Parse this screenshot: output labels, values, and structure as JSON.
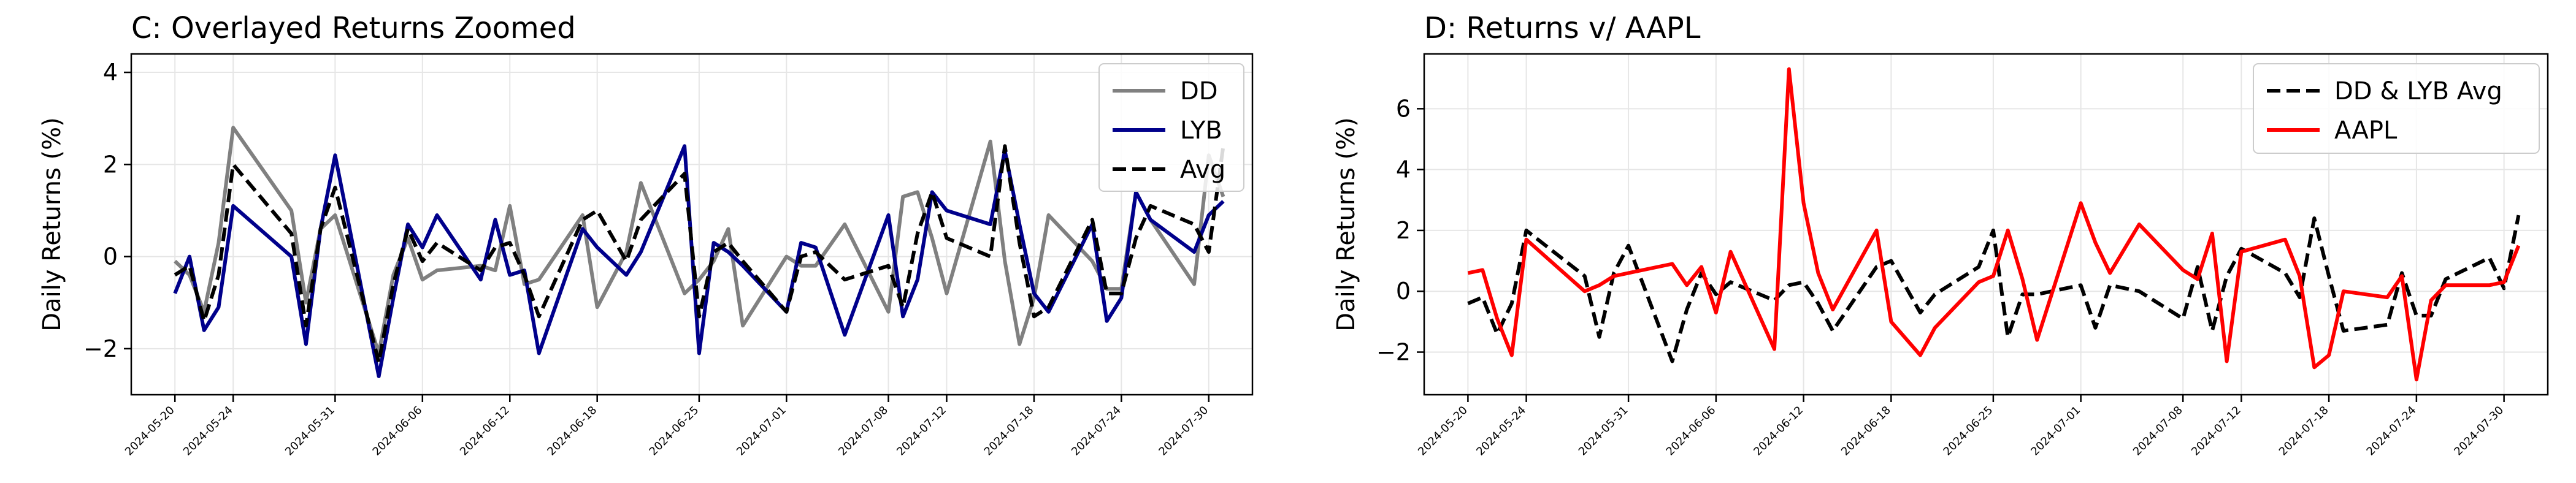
{
  "chart_data": [
    {
      "type": "line",
      "title": "C: Overlayed Returns Zoomed",
      "xlabel": "",
      "ylabel": "Daily Returns (%)",
      "xlim": [
        "2024-05-17",
        "2024-08-02"
      ],
      "ylim": [
        -3.0,
        4.4
      ],
      "yticks": [
        -2,
        0,
        2,
        4
      ],
      "ytick_labels": [
        "−2",
        "0",
        "2",
        "4"
      ],
      "xticks": [
        "2024-05-20",
        "2024-05-24",
        "2024-05-31",
        "2024-06-06",
        "2024-06-12",
        "2024-06-18",
        "2024-06-25",
        "2024-07-01",
        "2024-07-08",
        "2024-07-12",
        "2024-07-18",
        "2024-07-24",
        "2024-07-30"
      ],
      "grid": true,
      "legend": "top-right",
      "x": [
        "2024-05-20",
        "2024-05-21",
        "2024-05-22",
        "2024-05-23",
        "2024-05-24",
        "2024-05-28",
        "2024-05-29",
        "2024-05-30",
        "2024-05-31",
        "2024-06-03",
        "2024-06-04",
        "2024-06-05",
        "2024-06-06",
        "2024-06-07",
        "2024-06-10",
        "2024-06-11",
        "2024-06-12",
        "2024-06-13",
        "2024-06-14",
        "2024-06-17",
        "2024-06-18",
        "2024-06-20",
        "2024-06-21",
        "2024-06-24",
        "2024-06-25",
        "2024-06-26",
        "2024-06-27",
        "2024-06-28",
        "2024-07-01",
        "2024-07-02",
        "2024-07-03",
        "2024-07-05",
        "2024-07-08",
        "2024-07-09",
        "2024-07-10",
        "2024-07-11",
        "2024-07-12",
        "2024-07-15",
        "2024-07-16",
        "2024-07-17",
        "2024-07-18",
        "2024-07-19",
        "2024-07-22",
        "2024-07-23",
        "2024-07-24",
        "2024-07-25",
        "2024-07-26",
        "2024-07-29",
        "2024-07-30",
        "2024-07-31"
      ],
      "series": [
        {
          "name": "DD",
          "color": "#808080",
          "dash": "solid",
          "values": [
            -0.1,
            -0.4,
            -1.2,
            0.3,
            2.8,
            1.0,
            -1.0,
            0.6,
            0.9,
            -2.1,
            -0.4,
            0.4,
            -0.5,
            -0.3,
            -0.2,
            -0.3,
            1.1,
            -0.6,
            -0.5,
            0.9,
            -1.1,
            0.1,
            1.6,
            -0.8,
            -0.5,
            -0.1,
            0.6,
            -1.5,
            0.0,
            -0.2,
            -0.2,
            0.7,
            -1.2,
            1.3,
            1.4,
            0.4,
            -0.8,
            2.5,
            -0.1,
            -1.9,
            -0.9,
            0.9,
            -0.1,
            -0.7,
            -0.7,
            1.4,
            0.8,
            -0.6,
            2.2,
            1.3
          ]
        },
        {
          "name": "LYB",
          "color": "#00008b",
          "dash": "solid",
          "values": [
            -0.8,
            0.0,
            -1.6,
            -1.1,
            1.1,
            0.0,
            -1.9,
            0.6,
            2.2,
            -2.6,
            -0.9,
            0.7,
            0.2,
            0.9,
            -0.5,
            0.8,
            -0.4,
            -0.3,
            -2.1,
            0.6,
            0.2,
            -0.4,
            0.1,
            2.4,
            -2.1,
            0.3,
            0.1,
            -0.2,
            -1.2,
            0.3,
            0.2,
            -1.7,
            0.9,
            -1.3,
            -0.5,
            1.4,
            1.0,
            0.7,
            2.3,
            0.7,
            -0.8,
            -1.2,
            0.7,
            -1.4,
            -0.9,
            1.4,
            0.8,
            0.1,
            0.9,
            1.2
          ]
        },
        {
          "name": "Avg",
          "color": "#000000",
          "dash": "dashed",
          "values": [
            -0.4,
            -0.2,
            -1.4,
            -0.4,
            2.0,
            0.5,
            -1.5,
            0.6,
            1.5,
            -2.3,
            -0.6,
            0.6,
            -0.1,
            0.3,
            -0.3,
            0.2,
            0.3,
            -0.4,
            -1.3,
            0.8,
            1.0,
            -0.1,
            0.8,
            1.8,
            -1.3,
            0.1,
            0.3,
            -0.1,
            -1.2,
            0.0,
            0.1,
            -0.5,
            -0.2,
            -1.1,
            0.5,
            1.4,
            0.4,
            0.0,
            2.4,
            0.3,
            -1.3,
            -1.1,
            0.8,
            -0.8,
            -0.8,
            0.4,
            1.1,
            0.7,
            0.1,
            2.4
          ]
        }
      ]
    },
    {
      "type": "line",
      "title": "D: Returns v/ AAPL",
      "xlabel": "",
      "ylabel": "Daily Returns (%)",
      "xlim": [
        "2024-05-17",
        "2024-08-02"
      ],
      "ylim": [
        -3.4,
        7.8
      ],
      "yticks": [
        -2,
        0,
        2,
        4,
        6
      ],
      "ytick_labels": [
        "−2",
        "0",
        "2",
        "4",
        "6"
      ],
      "xticks": [
        "2024-05-20",
        "2024-05-24",
        "2024-05-31",
        "2024-06-06",
        "2024-06-12",
        "2024-06-18",
        "2024-06-25",
        "2024-07-01",
        "2024-07-08",
        "2024-07-12",
        "2024-07-18",
        "2024-07-24",
        "2024-07-30"
      ],
      "grid": true,
      "legend": "top-right",
      "x": [
        "2024-05-20",
        "2024-05-21",
        "2024-05-22",
        "2024-05-23",
        "2024-05-24",
        "2024-05-28",
        "2024-05-29",
        "2024-05-30",
        "2024-05-31",
        "2024-06-03",
        "2024-06-04",
        "2024-06-05",
        "2024-06-06",
        "2024-06-07",
        "2024-06-10",
        "2024-06-11",
        "2024-06-12",
        "2024-06-13",
        "2024-06-14",
        "2024-06-17",
        "2024-06-18",
        "2024-06-20",
        "2024-06-21",
        "2024-06-24",
        "2024-06-25",
        "2024-06-26",
        "2024-06-27",
        "2024-06-28",
        "2024-07-01",
        "2024-07-02",
        "2024-07-03",
        "2024-07-05",
        "2024-07-08",
        "2024-07-09",
        "2024-07-10",
        "2024-07-11",
        "2024-07-12",
        "2024-07-15",
        "2024-07-16",
        "2024-07-17",
        "2024-07-18",
        "2024-07-19",
        "2024-07-22",
        "2024-07-23",
        "2024-07-24",
        "2024-07-25",
        "2024-07-26",
        "2024-07-29",
        "2024-07-30",
        "2024-07-31"
      ],
      "series": [
        {
          "name": "DD & LYB Avg",
          "color": "#000000",
          "dash": "dashed",
          "values": [
            -0.4,
            -0.2,
            -1.4,
            -0.4,
            2.0,
            0.5,
            -1.5,
            0.6,
            1.5,
            -2.3,
            -0.6,
            0.6,
            -0.1,
            0.3,
            -0.3,
            0.2,
            0.3,
            -0.4,
            -1.3,
            0.8,
            1.0,
            -0.7,
            -0.1,
            0.8,
            2.0,
            -1.5,
            -0.1,
            -0.1,
            0.2,
            -1.2,
            0.2,
            0.0,
            -0.9,
            0.8,
            -1.3,
            0.5,
            1.4,
            0.6,
            -0.2,
            2.4,
            0.5,
            -1.3,
            -1.1,
            0.6,
            -0.8,
            -0.8,
            0.4,
            1.1,
            0.1,
            2.5
          ]
        },
        {
          "name": "AAPL",
          "color": "#ff0000",
          "dash": "solid",
          "values": [
            0.6,
            0.7,
            -0.9,
            -2.1,
            1.7,
            0.0,
            0.2,
            0.5,
            0.6,
            0.9,
            0.2,
            0.8,
            -0.7,
            1.3,
            -1.9,
            7.3,
            2.9,
            0.6,
            -0.6,
            2.0,
            -1.0,
            -2.1,
            -1.2,
            0.3,
            0.5,
            2.0,
            0.4,
            -1.6,
            2.9,
            1.6,
            0.6,
            2.2,
            0.7,
            0.4,
            1.9,
            -2.3,
            1.3,
            1.7,
            0.5,
            -2.5,
            -2.1,
            0.0,
            -0.2,
            0.5,
            -2.9,
            -0.3,
            0.2,
            0.2,
            0.3,
            1.5
          ]
        }
      ]
    }
  ]
}
